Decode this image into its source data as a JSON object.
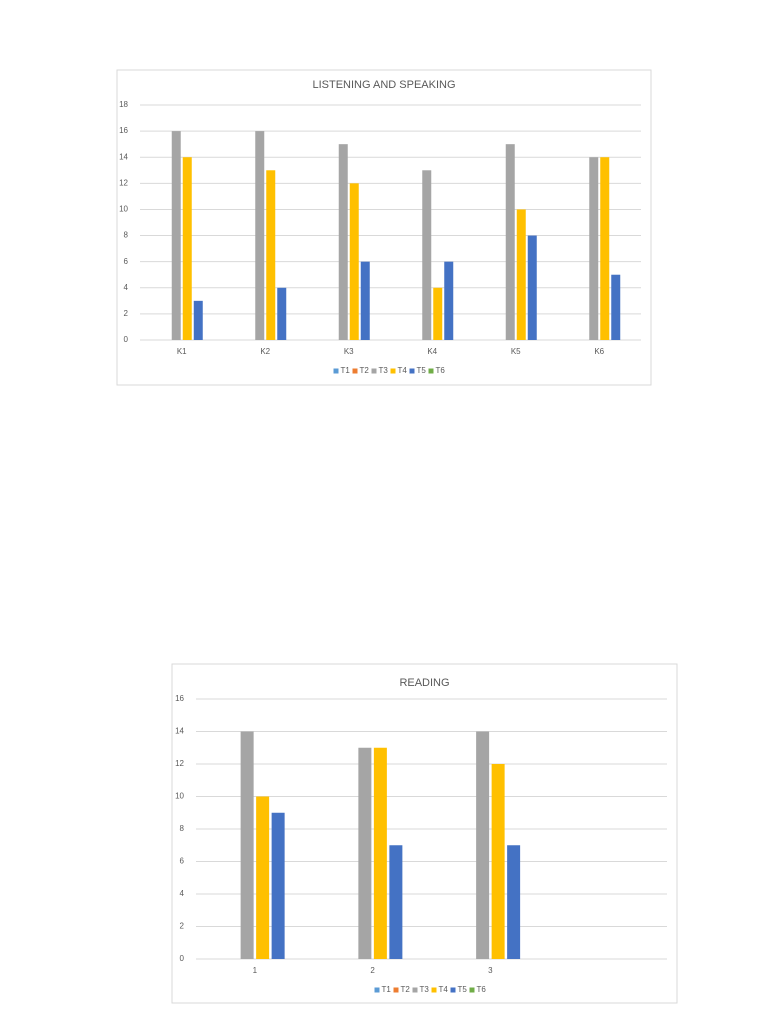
{
  "chart_data": [
    {
      "type": "bar",
      "title": "LISTENING AND SPEAKING",
      "categories": [
        "K1",
        "K2",
        "K3",
        "K4",
        "K5",
        "K6"
      ],
      "series": [
        {
          "name": "T1",
          "color": "#5b9bd5",
          "values": [
            null,
            null,
            null,
            null,
            null,
            null
          ]
        },
        {
          "name": "T2",
          "color": "#ed7d31",
          "values": [
            null,
            null,
            null,
            null,
            null,
            null
          ]
        },
        {
          "name": "T3",
          "color": "#a5a5a5",
          "values": [
            16,
            16,
            15,
            13,
            15,
            14
          ]
        },
        {
          "name": "T4",
          "color": "#ffc000",
          "values": [
            14,
            13,
            12,
            4,
            10,
            14
          ]
        },
        {
          "name": "T5",
          "color": "#4472c4",
          "values": [
            3,
            4,
            6,
            6,
            8,
            5
          ]
        },
        {
          "name": "T6",
          "color": "#70ad47",
          "values": [
            null,
            null,
            null,
            null,
            null,
            null
          ]
        }
      ],
      "ylim": [
        0,
        18
      ],
      "yticks": [
        0,
        2,
        4,
        6,
        8,
        10,
        12,
        14,
        16,
        18
      ],
      "grid": true,
      "legend": "bottom"
    },
    {
      "type": "bar",
      "title": "READING",
      "categories": [
        "1",
        "2",
        "3",
        null
      ],
      "series": [
        {
          "name": "T1",
          "color": "#5b9bd5",
          "values": [
            null,
            null,
            null,
            null
          ]
        },
        {
          "name": "T2",
          "color": "#ed7d31",
          "values": [
            null,
            null,
            null,
            null
          ]
        },
        {
          "name": "T3",
          "color": "#a5a5a5",
          "values": [
            14,
            13,
            14,
            null
          ]
        },
        {
          "name": "T4",
          "color": "#ffc000",
          "values": [
            10,
            13,
            12,
            null
          ]
        },
        {
          "name": "T5",
          "color": "#4472c4",
          "values": [
            9,
            7,
            7,
            null
          ]
        },
        {
          "name": "T6",
          "color": "#70ad47",
          "values": [
            null,
            null,
            null,
            null
          ]
        }
      ],
      "ylim": [
        0,
        16
      ],
      "yticks": [
        0,
        2,
        4,
        6,
        8,
        10,
        12,
        14,
        16
      ],
      "grid": true,
      "legend": "bottom"
    }
  ]
}
